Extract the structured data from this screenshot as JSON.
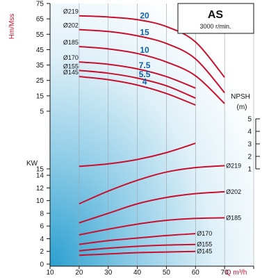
{
  "chart_data": {
    "type": "line",
    "model_box": {
      "title": "AS",
      "subtitle": "3000 r/min."
    },
    "x_axis": {
      "label": "Q m³/h",
      "ticks": [
        10,
        20,
        30,
        40,
        50,
        60,
        70,
        80
      ],
      "range": [
        10,
        80
      ]
    },
    "head_axis": {
      "label": "Hm/Mss",
      "ticks": [
        5,
        15,
        25,
        35,
        45,
        55,
        65,
        75
      ],
      "curves": [
        {
          "name": "Ø219",
          "power_label": "20",
          "x": [
            20,
            30,
            40,
            50,
            60,
            70
          ],
          "y": [
            67,
            66.2,
            64.5,
            60,
            50,
            27
          ]
        },
        {
          "name": "Ø202",
          "power_label": "15",
          "x": [
            20,
            30,
            40,
            50,
            60,
            70
          ],
          "y": [
            58,
            56.8,
            54,
            49,
            39,
            17
          ]
        },
        {
          "name": "Ø185",
          "power_label": "10",
          "x": [
            20,
            30,
            40,
            50,
            60,
            70
          ],
          "y": [
            47,
            45.5,
            42.5,
            37,
            28,
            10
          ]
        },
        {
          "name": "Ø170",
          "power_label": "7.5",
          "x": [
            20,
            30,
            40,
            50,
            60
          ],
          "y": [
            37,
            35.5,
            32.5,
            27.5,
            20
          ]
        },
        {
          "name": "Ø155",
          "power_label": "5.5",
          "x": [
            20,
            30,
            40,
            50,
            60
          ],
          "y": [
            31.5,
            29.7,
            26.5,
            21.5,
            13.5
          ]
        },
        {
          "name": "Ø145",
          "power_label": "4",
          "x": [
            20,
            30,
            40,
            50,
            60
          ],
          "y": [
            27.5,
            25.5,
            22,
            16.5,
            9
          ]
        }
      ]
    },
    "npsh_axis": {
      "label": "NPSH",
      "unit": "(m)",
      "ticks": [
        1,
        2,
        3,
        4,
        5
      ],
      "x": [
        20,
        30,
        40,
        50,
        60
      ],
      "y": [
        1.2,
        1.4,
        1.75,
        2.3,
        3.05
      ]
    },
    "power_axis": {
      "label": "KW",
      "ticks": [
        0,
        2,
        4,
        6,
        8,
        10,
        12,
        14,
        15
      ],
      "curves": [
        {
          "name": "Ø219",
          "x": [
            20,
            30,
            40,
            50,
            60,
            70
          ],
          "y": [
            9.5,
            11.5,
            13.2,
            14.5,
            15.2,
            15.5
          ]
        },
        {
          "name": "Ø202",
          "x": [
            20,
            30,
            40,
            50,
            60,
            70
          ],
          "y": [
            6.5,
            8,
            9.5,
            10.5,
            11.1,
            11.4
          ]
        },
        {
          "name": "Ø185",
          "x": [
            20,
            30,
            40,
            50,
            60,
            70
          ],
          "y": [
            4.6,
            5.5,
            6.3,
            6.9,
            7.2,
            7.3
          ]
        },
        {
          "name": "Ø170",
          "x": [
            20,
            30,
            40,
            50,
            60
          ],
          "y": [
            3.1,
            3.7,
            4.1,
            4.5,
            4.8
          ]
        },
        {
          "name": "Ø155",
          "x": [
            20,
            30,
            40,
            50,
            60
          ],
          "y": [
            2.1,
            2.5,
            2.8,
            3.0,
            3.1
          ]
        },
        {
          "name": "Ø145",
          "x": [
            20,
            30,
            40,
            50,
            60
          ],
          "y": [
            1.4,
            1.6,
            1.8,
            1.9,
            2.0
          ]
        }
      ]
    },
    "colors": {
      "curve": "#c8102e",
      "power_label": "#1060a8",
      "grid": "#9aa4ad",
      "bg_light": "#ffffff",
      "bg_dark": "#2a9fd0"
    }
  }
}
